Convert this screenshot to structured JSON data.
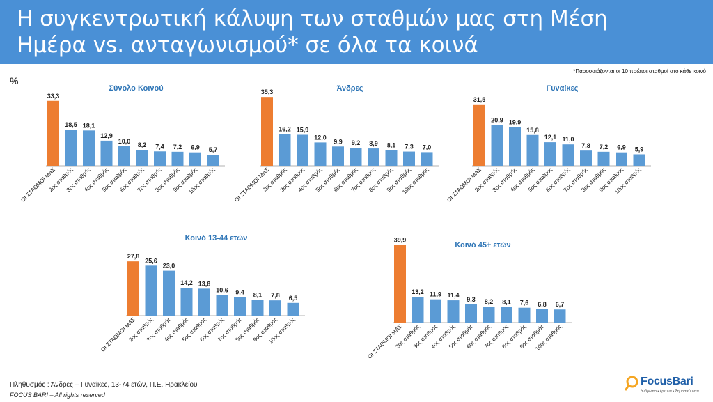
{
  "header": {
    "title_line1": "Η συγκεντρωτική κάλυψη των σταθμών μας στη Μέση",
    "title_line2": "Ημέρα vs. ανταγωνισμού* σε όλα τα κοινά"
  },
  "note": "*Παρουσιάζονται οι 10 πρώτοι σταθμοί στο κάθε κοινό",
  "unit_label": "%",
  "footer": {
    "population": "Πληθυσμός : Άνδρες – Γυναίκες, 13-74 ετών, Π.Ε. Ηρακλείου",
    "rights": "FOCUS BARI – All rights reserved"
  },
  "logo": {
    "name": "FocusBari",
    "tagline": "άνθρωποι• έρευνα • δημοσιεύματα"
  },
  "colors": {
    "header": "#4a90d6",
    "highlight_bar": "#ed7d31",
    "bar": "#5b9bd5",
    "chart_title": "#2e75b6"
  },
  "chart_data": [
    {
      "type": "bar",
      "title": "Σύνολο Κοινού",
      "categories": [
        "ΟΙ ΣΤΑΘΜΟΙ ΜΑΣ",
        "2ος σταθμός",
        "3ος σταθμός",
        "4ος σταθμός",
        "5ος σταθμός",
        "6ος σταθμός",
        "7ος σταθμός",
        "8ος σταθμός",
        "9ος σταθμός",
        "10ος σταθμός"
      ],
      "values": [
        33.3,
        18.5,
        18.1,
        12.9,
        10.0,
        8.2,
        7.4,
        7.2,
        6.9,
        5.7
      ],
      "labels": [
        "33,3",
        "18,5",
        "18,1",
        "12,9",
        "10,0",
        "8,2",
        "7,4",
        "7,2",
        "6,9",
        "5,7"
      ],
      "ylim": [
        0,
        40
      ]
    },
    {
      "type": "bar",
      "title": "Άνδρες",
      "categories": [
        "ΟΙ ΣΤΑΘΜΟΙ ΜΑΣ",
        "2ος σταθμός",
        "3ος σταθμός",
        "4ος σταθμός",
        "5ος σταθμός",
        "6ος σταθμός",
        "7ος σταθμός",
        "8ος σταθμός",
        "9ος σταθμός",
        "10ος σταθμός"
      ],
      "values": [
        35.3,
        16.2,
        15.9,
        12.0,
        9.9,
        9.2,
        8.9,
        8.1,
        7.3,
        7.0
      ],
      "labels": [
        "35,3",
        "16,2",
        "15,9",
        "12,0",
        "9,9",
        "9,2",
        "8,9",
        "8,1",
        "7,3",
        "7,0"
      ],
      "ylim": [
        0,
        40
      ]
    },
    {
      "type": "bar",
      "title": "Γυναίκες",
      "categories": [
        "ΟΙ ΣΤΑΘΜΟΙ ΜΑΣ",
        "2ος σταθμός",
        "3ος σταθμός",
        "4ος σταθμός",
        "5ος σταθμός",
        "6ος σταθμός",
        "7ος σταθμός",
        "8ος σταθμός",
        "9ος σταθμός",
        "10ος σταθμός"
      ],
      "values": [
        31.5,
        20.9,
        19.9,
        15.8,
        12.1,
        11.0,
        7.8,
        7.2,
        6.9,
        5.9
      ],
      "labels": [
        "31,5",
        "20,9",
        "19,9",
        "15,8",
        "12,1",
        "11,0",
        "7,8",
        "7,2",
        "6,9",
        "5,9"
      ],
      "ylim": [
        0,
        40
      ]
    },
    {
      "type": "bar",
      "title": "Κοινό 13-44 ετών",
      "categories": [
        "ΟΙ ΣΤΑΘΜΟΙ ΜΑΣ",
        "2ος σταθμός",
        "3ος σταθμός",
        "4ος σταθμός",
        "5ος σταθμός",
        "6ος σταθμός",
        "7ος σταθμός",
        "8ος σταθμός",
        "9ος σταθμός",
        "10ος σταθμός"
      ],
      "values": [
        27.8,
        25.6,
        23.0,
        14.2,
        13.8,
        10.6,
        9.4,
        8.1,
        7.8,
        6.5
      ],
      "labels": [
        "27,8",
        "25,6",
        "23,0",
        "14,2",
        "13,8",
        "10,6",
        "9,4",
        "8,1",
        "7,8",
        "6,5"
      ],
      "ylim": [
        0,
        40
      ]
    },
    {
      "type": "bar",
      "title": "Κοινό 45+ ετών",
      "categories": [
        "ΟΙ ΣΤΑΘΜΟΙ ΜΑΣ",
        "2ος σταθμός",
        "3ος σταθμός",
        "4ος σταθμός",
        "5ος σταθμός",
        "6ος σταθμός",
        "7ος σταθμός",
        "8ος σταθμός",
        "9ος σταθμός",
        "10ος σταθμός"
      ],
      "values": [
        39.9,
        13.2,
        11.9,
        11.4,
        9.3,
        8.2,
        8.1,
        7.6,
        6.8,
        6.7
      ],
      "labels": [
        "39,9",
        "13,2",
        "11,9",
        "11,4",
        "9,3",
        "8,2",
        "8,1",
        "7,6",
        "6,8",
        "6,7"
      ],
      "ylim": [
        0,
        40
      ]
    }
  ]
}
